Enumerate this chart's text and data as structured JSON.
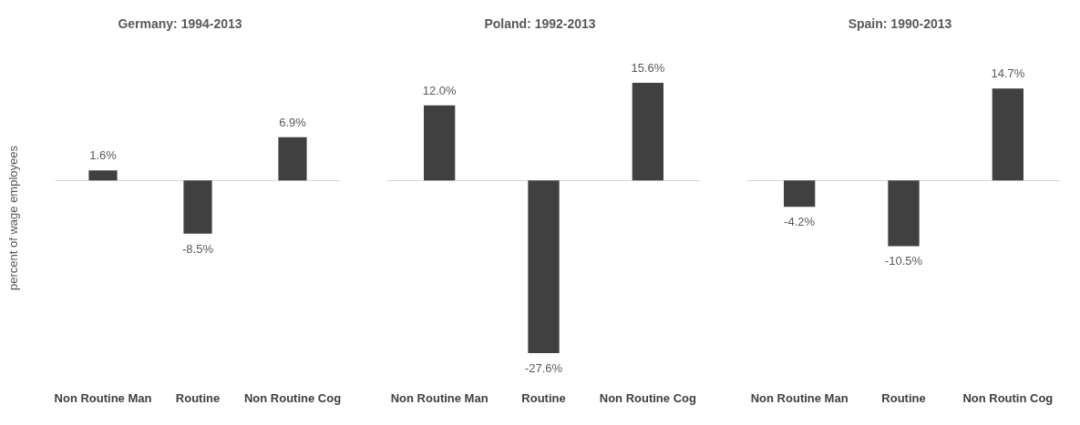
{
  "chart_data": [
    {
      "type": "bar",
      "title": "Germany: 1994-2013",
      "ylabel": "percent of wage employees",
      "categories": [
        "Non Routine Man",
        "Routine",
        "Non Routine Cog"
      ],
      "values": [
        1.6,
        -8.5,
        6.9
      ],
      "value_labels": [
        "1.6%",
        "-8.5%",
        "6.9%"
      ],
      "color": "#404040"
    },
    {
      "type": "bar",
      "title": "Poland: 1992-2013",
      "categories": [
        "Non Routine Man",
        "Routine",
        "Non Routine Cog"
      ],
      "values": [
        12.0,
        -27.6,
        15.6
      ],
      "value_labels": [
        "12.0%",
        "-27.6%",
        "15.6%"
      ],
      "color": "#404040"
    },
    {
      "type": "bar",
      "title": "Spain: 1990-2013",
      "categories": [
        "Non Routine Man",
        "Routine",
        "Non Routin Cog"
      ],
      "values": [
        -4.2,
        -10.5,
        14.7
      ],
      "value_labels": [
        "-4.2%",
        "-10.5%",
        "14.7%"
      ],
      "color": "#404040"
    }
  ]
}
